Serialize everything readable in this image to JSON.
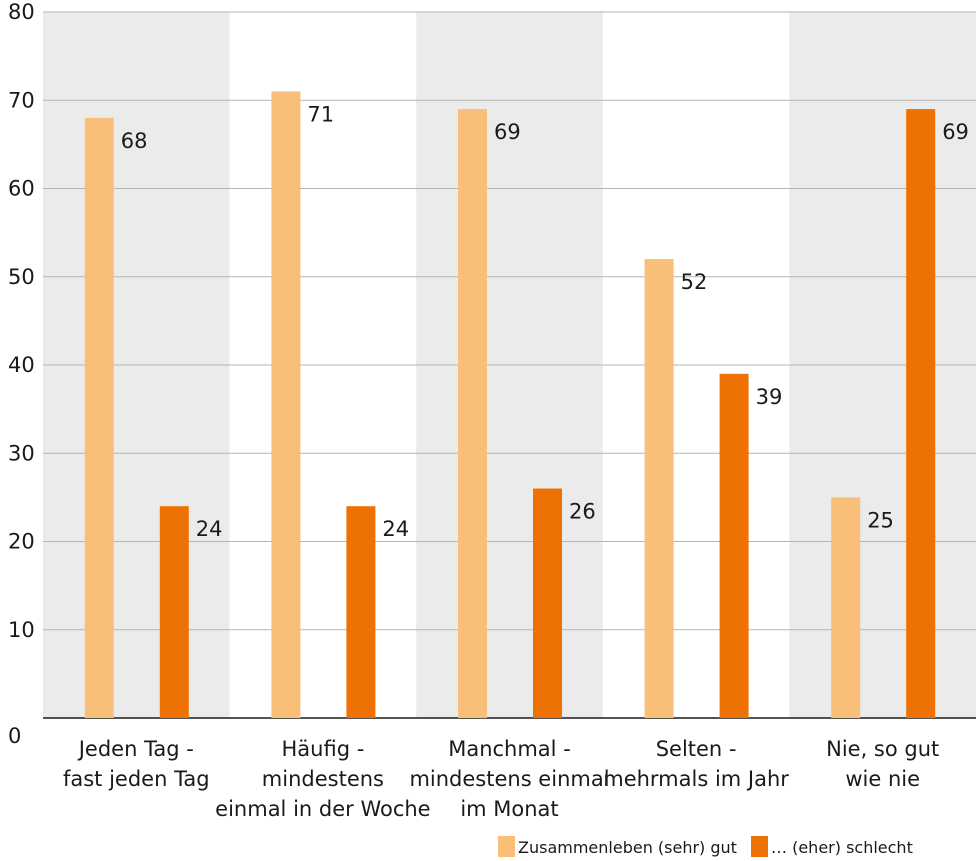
{
  "chart_data": {
    "type": "bar",
    "categories": [
      [
        "Jeden Tag -",
        "fast jeden Tag"
      ],
      [
        "Häufig -",
        "mindestens",
        "einmal in der Woche"
      ],
      [
        "Manchmal -",
        "mindestens einmal",
        "im Monat"
      ],
      [
        "Selten -",
        "mehrmals im Jahr"
      ],
      [
        "Nie, so gut",
        "wie nie"
      ]
    ],
    "series": [
      {
        "name": "Zusammenleben (sehr) gut",
        "color": "#F9BE77",
        "values": [
          68,
          71,
          69,
          52,
          25
        ]
      },
      {
        "name": "… (eher) schlecht",
        "color": "#EE7203",
        "values": [
          24,
          24,
          26,
          39,
          69
        ]
      }
    ],
    "ylim": [
      0,
      80
    ],
    "yticks": [
      0,
      10,
      20,
      30,
      40,
      50,
      60,
      70,
      80
    ],
    "band_color": "#EBEBEB",
    "grid": true,
    "legend_position": "bottom-right"
  }
}
